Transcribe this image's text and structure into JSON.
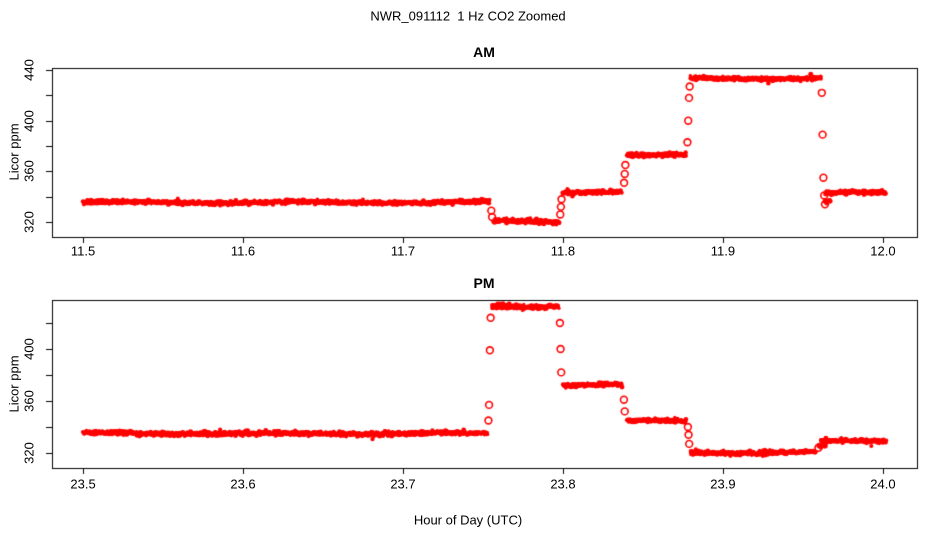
{
  "figure": {
    "title": "NWR_091112  1 Hz CO2 Zoomed",
    "xlabel": "Hour of Day (UTC)",
    "background": "#ffffff",
    "point_color": "#ff0000",
    "axis_color": "#000000"
  },
  "chart_data": [
    {
      "type": "scatter",
      "panel": "top",
      "title": "AM",
      "ylabel": "Licor ppm",
      "marker": "open-circle-red",
      "grid": false,
      "xlim": [
        11.4806,
        12.0213
      ],
      "ylim": [
        308.2,
        441.6
      ],
      "xticks": {
        "values": [
          11.5,
          11.6,
          11.7,
          11.8,
          11.9,
          12.0
        ],
        "labels": [
          "11.5",
          "11.6",
          "11.7",
          "11.8",
          "11.9",
          "12.0"
        ]
      },
      "yticks": {
        "labeled_values": [
          320,
          360,
          400,
          440
        ],
        "labeled_labels": [
          "320",
          "360",
          "400",
          "440"
        ],
        "minor_values": [
          340,
          380,
          420
        ]
      },
      "segments": [
        {
          "x0": 11.5,
          "x1": 11.754,
          "ppm": 335.5
        },
        {
          "x0": 11.7565,
          "x1": 11.7975,
          "ppm": 320.5
        },
        {
          "x0": 11.8,
          "x1": 11.837,
          "ppm": 344.0
        },
        {
          "x0": 11.84,
          "x1": 11.877,
          "ppm": 372.5
        },
        {
          "x0": 11.8795,
          "x1": 11.9615,
          "ppm": 433.5
        },
        {
          "x0": 11.9635,
          "x1": 11.9675,
          "ppm": 337.0
        },
        {
          "x0": 11.964,
          "x1": 12.002,
          "ppm": 343.0
        }
      ],
      "transition_points": [
        [
          11.7552,
          329
        ],
        [
          11.7557,
          324
        ],
        [
          11.7983,
          326
        ],
        [
          11.7987,
          332
        ],
        [
          11.7991,
          338
        ],
        [
          11.8382,
          351
        ],
        [
          11.8386,
          358
        ],
        [
          11.839,
          365
        ],
        [
          11.8778,
          383
        ],
        [
          11.8783,
          400
        ],
        [
          11.8788,
          418
        ],
        [
          11.8792,
          427
        ],
        [
          11.9618,
          422
        ],
        [
          11.9623,
          389
        ],
        [
          11.9628,
          355
        ],
        [
          11.9633,
          341
        ],
        [
          11.9638,
          334
        ]
      ]
    },
    {
      "type": "scatter",
      "panel": "bottom",
      "title": "PM",
      "ylabel": "Licor ppm",
      "marker": "open-circle-red",
      "grid": false,
      "xlim": [
        23.4806,
        24.0213
      ],
      "ylim": [
        308.46,
        437.69
      ],
      "xticks": {
        "values": [
          23.5,
          23.6,
          23.7,
          23.8,
          23.9,
          24.0
        ],
        "labels": [
          "23.5",
          "23.6",
          "23.7",
          "23.8",
          "23.9",
          "24.0"
        ]
      },
      "yticks": {
        "labeled_values": [
          320,
          360,
          400
        ],
        "labeled_labels": [
          "320",
          "360",
          "400"
        ],
        "minor_values": [
          340,
          380,
          420
        ]
      },
      "segments": [
        {
          "x0": 23.5,
          "x1": 23.753,
          "ppm": 335.0
        },
        {
          "x0": 23.7555,
          "x1": 23.7975,
          "ppm": 433.0
        },
        {
          "x0": 23.8,
          "x1": 23.837,
          "ppm": 372.5
        },
        {
          "x0": 23.84,
          "x1": 23.877,
          "ppm": 344.5
        },
        {
          "x0": 23.8795,
          "x1": 23.958,
          "ppm": 320.5
        },
        {
          "x0": 23.9595,
          "x1": 23.9645,
          "ppm": 326.0
        },
        {
          "x0": 23.961,
          "x1": 24.002,
          "ppm": 329.0
        }
      ],
      "transition_points": [
        [
          23.7534,
          345
        ],
        [
          23.7538,
          357
        ],
        [
          23.7543,
          399
        ],
        [
          23.7548,
          424
        ],
        [
          23.7981,
          420
        ],
        [
          23.7985,
          400
        ],
        [
          23.7989,
          382
        ],
        [
          23.8381,
          361
        ],
        [
          23.8386,
          352
        ],
        [
          23.8781,
          340
        ],
        [
          23.8785,
          334
        ],
        [
          23.8789,
          327
        ],
        [
          23.9597,
          324
        ]
      ]
    }
  ]
}
